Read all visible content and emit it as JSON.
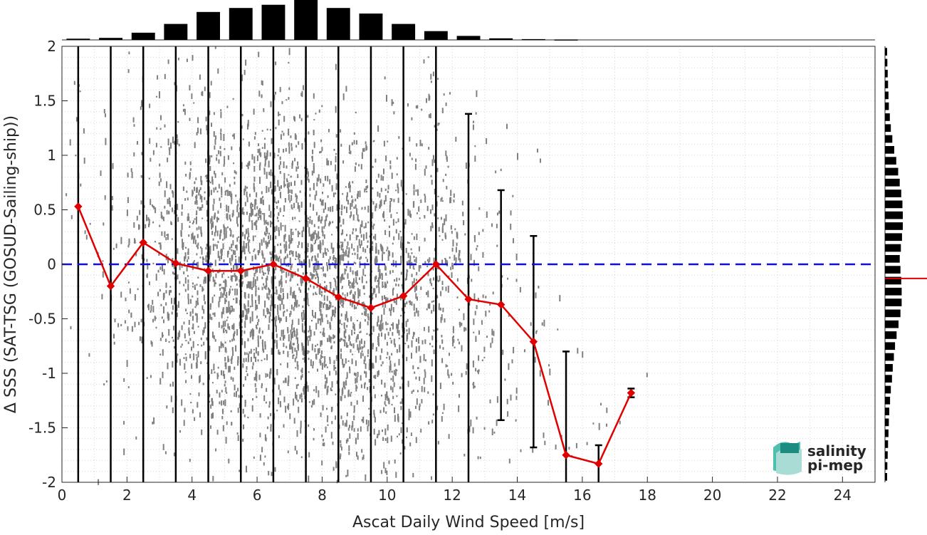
{
  "chart_data": {
    "type": "scatter",
    "xlabel": "Ascat Daily Wind Speed [m/s]",
    "ylabel": "Δ SSS (SAT-TSG (GOSUD-Sailing-ship))",
    "xlim": [
      0,
      25
    ],
    "ylim": [
      -2,
      2
    ],
    "xticks": [
      "0",
      "2",
      "4",
      "6",
      "8",
      "10",
      "12",
      "14",
      "16",
      "18",
      "20",
      "22",
      "24"
    ],
    "yticks": [
      "-2",
      "-1.5",
      "-1",
      "-0.5",
      "0",
      "0.5",
      "1",
      "1.5",
      "2"
    ],
    "grid": true,
    "reference_line": {
      "y": 0,
      "style": "dashed",
      "color": "#1010d0"
    },
    "bin_means": {
      "x": [
        0.5,
        1.5,
        2.5,
        3.5,
        4.5,
        5.5,
        6.5,
        7.5,
        8.5,
        9.5,
        10.5,
        11.5,
        12.5,
        13.5,
        14.5,
        15.5,
        16.5,
        17.5
      ],
      "y": [
        0.53,
        -0.2,
        0.2,
        0.01,
        -0.06,
        -0.06,
        0.0,
        -0.13,
        -0.3,
        -0.4,
        -0.29,
        0.0,
        -0.32,
        -0.37,
        -0.71,
        -1.75,
        -1.83,
        -1.18
      ],
      "color": "#e00000"
    },
    "error_bars": {
      "x": [
        0.5,
        1.5,
        2.5,
        3.5,
        4.5,
        5.5,
        6.5,
        7.5,
        8.5,
        9.5,
        10.5,
        11.5,
        12.5,
        13.5,
        14.5,
        15.5,
        16.5,
        17.5
      ],
      "low": [
        -2,
        -2,
        -2,
        -2,
        -2,
        -2,
        -2,
        -2,
        -2,
        -2,
        -2,
        -2,
        -2,
        -1.43,
        -1.68,
        -2,
        -2,
        -1.22
      ],
      "high": [
        2,
        2,
        2,
        2,
        2,
        2,
        2,
        2,
        2,
        2,
        2,
        2,
        1.38,
        0.68,
        0.26,
        -0.8,
        -1.66,
        -1.14
      ]
    },
    "top_histogram": {
      "x": [
        0.5,
        1.5,
        2.5,
        3.5,
        4.5,
        5.5,
        6.5,
        7.5,
        8.5,
        9.5,
        10.5,
        11.5,
        12.5,
        13.5,
        14.5,
        15.5,
        16.5,
        17.5
      ],
      "counts": [
        3,
        5,
        18,
        40,
        70,
        80,
        88,
        100,
        80,
        66,
        40,
        22,
        10,
        4,
        2,
        1,
        0,
        0
      ]
    },
    "right_histogram": {
      "y": [
        1.95,
        1.85,
        1.75,
        1.65,
        1.55,
        1.45,
        1.35,
        1.25,
        1.15,
        1.05,
        0.95,
        0.85,
        0.75,
        0.65,
        0.55,
        0.45,
        0.35,
        0.25,
        0.15,
        0.05,
        -0.05,
        -0.15,
        -0.25,
        -0.35,
        -0.45,
        -0.55,
        -0.65,
        -0.75,
        -0.85,
        -0.95,
        -1.05,
        -1.15,
        -1.25,
        -1.35,
        -1.45,
        -1.55,
        -1.65,
        -1.75,
        -1.85,
        -1.95
      ],
      "counts": [
        10,
        12,
        14,
        16,
        18,
        20,
        25,
        30,
        38,
        48,
        58,
        68,
        76,
        84,
        90,
        92,
        92,
        88,
        82,
        76,
        80,
        84,
        86,
        86,
        80,
        70,
        60,
        52,
        46,
        40,
        36,
        30,
        26,
        22,
        20,
        18,
        16,
        14,
        12,
        10
      ],
      "median_marker_y": -0.13
    },
    "scatter_density": {
      "description_free_note": "",
      "centers_x": [
        0.5,
        1.5,
        2.5,
        3.5,
        4.5,
        5.5,
        6.5,
        7.5,
        8.5,
        9.5,
        10.5,
        11.5,
        12.5,
        13.5,
        14.5,
        15.5,
        16.5,
        17.5
      ],
      "relative_density": [
        0.04,
        0.08,
        0.25,
        0.55,
        0.85,
        0.95,
        1.0,
        1.0,
        0.95,
        0.85,
        0.65,
        0.45,
        0.25,
        0.12,
        0.06,
        0.03,
        0.02,
        0.01
      ],
      "color": "#808080"
    }
  },
  "logo": {
    "line1": "salinity",
    "line2": "pi-mep",
    "color": "#2aa898"
  }
}
